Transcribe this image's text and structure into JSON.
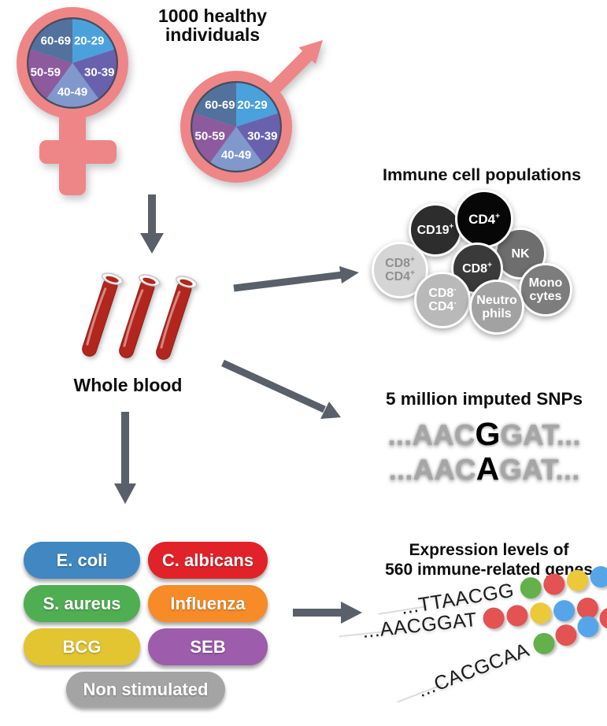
{
  "titles": {
    "cohort_line1": "1000 healthy",
    "cohort_line2": "individuals"
  },
  "labels": {
    "whole_blood": "Whole blood"
  },
  "age_pie": {
    "segments": [
      {
        "label": "20-29",
        "color": "#4ba1dc"
      },
      {
        "label": "30-39",
        "color": "#6a61ae"
      },
      {
        "label": "40-49",
        "color": "#8198cc"
      },
      {
        "label": "50-59",
        "color": "#8d5a9e"
      },
      {
        "label": "60-69",
        "color": "#53719d"
      }
    ]
  },
  "immune_cells": {
    "title": "Immune cell populations",
    "cells": [
      {
        "key": "nk",
        "bg": "#6e6e6e",
        "fg": "#ffffff",
        "lines": [
          {
            "text": "NK"
          }
        ]
      },
      {
        "key": "cd19",
        "bg": "#2d2d2d",
        "fg": "#ffffff",
        "lines": [
          {
            "text": "CD19",
            "sup": "+"
          }
        ]
      },
      {
        "key": "cd8cd4pos",
        "bg": "#d5d5d5",
        "fg": "#8f8f8f",
        "lines": [
          {
            "text": "CD8",
            "sup": "+"
          },
          {
            "text": "CD4",
            "sup": "+"
          }
        ]
      },
      {
        "key": "cd4",
        "bg": "#070707",
        "fg": "#ffffff",
        "lines": [
          {
            "text": "CD4",
            "sup": "+"
          }
        ]
      },
      {
        "key": "cd8",
        "bg": "#3a3a3a",
        "fg": "#ffffff",
        "lines": [
          {
            "text": "CD8",
            "sup": "+"
          }
        ]
      },
      {
        "key": "monocytes",
        "bg": "#7d7d7d",
        "fg": "#ffffff",
        "lines": [
          {
            "text": "Mono"
          },
          {
            "text": "cytes"
          }
        ]
      },
      {
        "key": "cd8cd4neg",
        "bg": "#b9b9b9",
        "fg": "#ffffff",
        "lines": [
          {
            "text": "CD8",
            "sup": "-"
          },
          {
            "text": "CD4",
            "sup": "-"
          }
        ]
      },
      {
        "key": "neutrophils",
        "bg": "#a2a2a2",
        "fg": "#ffffff",
        "lines": [
          {
            "text": "Neutro"
          },
          {
            "text": "phils"
          }
        ]
      }
    ]
  },
  "snps": {
    "title": "5 million imputed SNPs",
    "rows": [
      {
        "prefix": "...AAC",
        "variant": "G",
        "suffix": "GAT..."
      },
      {
        "prefix": "...AAC",
        "variant": "A",
        "suffix": "GAT..."
      }
    ]
  },
  "stimuli": {
    "items": [
      {
        "label": "E. coli",
        "color": "#4187c1"
      },
      {
        "label": "C. albicans",
        "color": "#e12228"
      },
      {
        "label": "S. aureus",
        "color": "#4fae52"
      },
      {
        "label": "Influenza",
        "color": "#f68b28"
      },
      {
        "label": "BCG",
        "color": "#e3c431"
      },
      {
        "label": "SEB",
        "color": "#9d5dac"
      },
      {
        "label": "Non stimulated",
        "color": "#a4a4a4"
      }
    ]
  },
  "expression": {
    "title_line1": "Expression levels of",
    "title_line2": "560 immune-related genes",
    "rows": [
      {
        "sequence": "...TTAACGG",
        "dots": [
          "#63b04d",
          "#e25351",
          "#ecc83b",
          "#56a5e9",
          "#56a5e9"
        ]
      },
      {
        "sequence": "...AACGGAT",
        "dots": [
          "#e25351",
          "#e25351",
          "#ecc83b",
          "#56a5e9",
          "#e25351"
        ]
      },
      {
        "sequence": "...CACGCAA",
        "dots": [
          "#63b04d",
          "#e25351",
          "#56a5e9",
          "#e25351",
          "#e25351"
        ]
      }
    ]
  },
  "colors": {
    "symbol": "#ee8687",
    "pie_ring": "#474c59",
    "arrow": "#5a6069",
    "blood": "#b2261d"
  }
}
